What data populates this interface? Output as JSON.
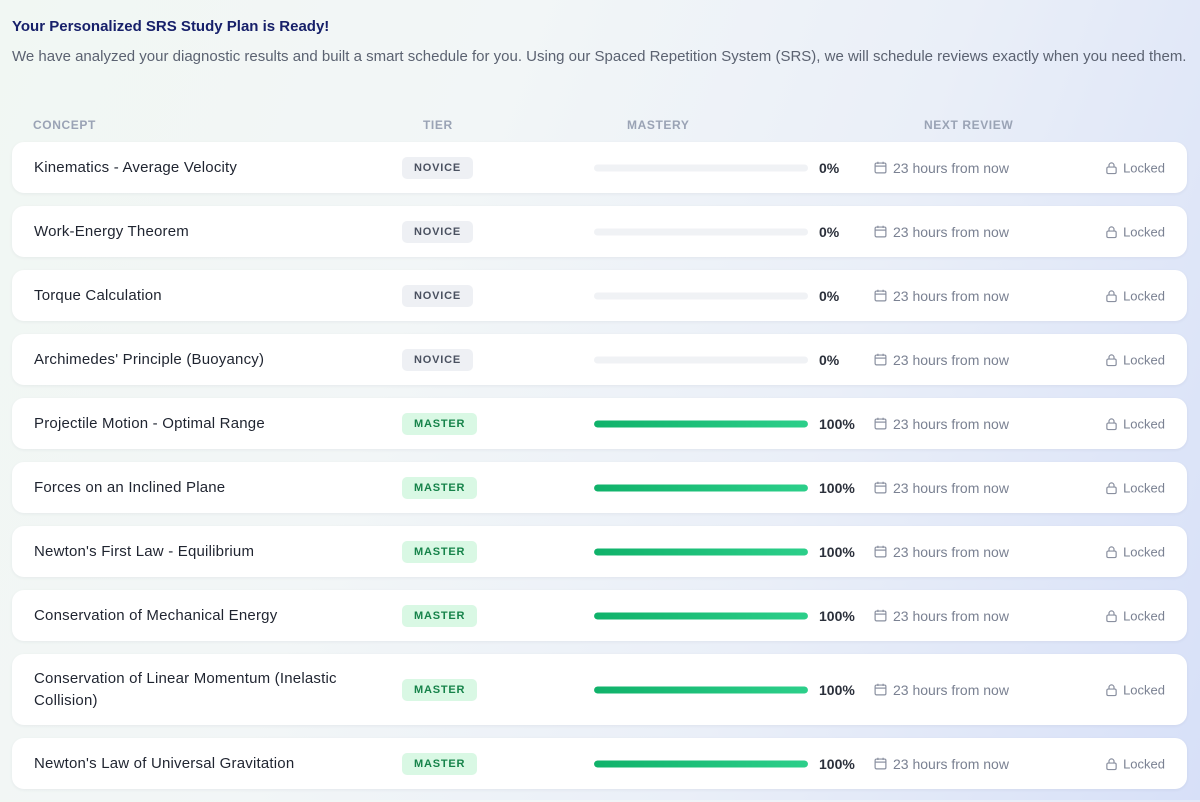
{
  "header": {
    "title": "Your Personalized SRS Study Plan is Ready!",
    "description": "We have analyzed your diagnostic results and built a smart schedule for you. Using our Spaced Repetition System (SRS), we will schedule reviews exactly when you need them."
  },
  "columns": {
    "concept": "CONCEPT",
    "tier": "TIER",
    "mastery": "MASTERY",
    "next_review": "NEXT REVIEW"
  },
  "icons": {
    "review": "calendar-icon",
    "status": "lock-icon"
  },
  "colors": {
    "title": "#17206a",
    "master_badge_bg": "#d9f8e4",
    "master_badge_text": "#16834a",
    "novice_badge_bg": "#eef0f4",
    "progress_fill": "#10b26a"
  },
  "rows": [
    {
      "concept": "Kinematics - Average Velocity",
      "tier": "NOVICE",
      "mastery": 0,
      "mastery_label": "0%",
      "next_review": "23 hours from now",
      "status": "Locked"
    },
    {
      "concept": "Work-Energy Theorem",
      "tier": "NOVICE",
      "mastery": 0,
      "mastery_label": "0%",
      "next_review": "23 hours from now",
      "status": "Locked"
    },
    {
      "concept": "Torque Calculation",
      "tier": "NOVICE",
      "mastery": 0,
      "mastery_label": "0%",
      "next_review": "23 hours from now",
      "status": "Locked"
    },
    {
      "concept": "Archimedes' Principle (Buoyancy)",
      "tier": "NOVICE",
      "mastery": 0,
      "mastery_label": "0%",
      "next_review": "23 hours from now",
      "status": "Locked"
    },
    {
      "concept": "Projectile Motion - Optimal Range",
      "tier": "MASTER",
      "mastery": 100,
      "mastery_label": "100%",
      "next_review": "23 hours from now",
      "status": "Locked"
    },
    {
      "concept": "Forces on an Inclined Plane",
      "tier": "MASTER",
      "mastery": 100,
      "mastery_label": "100%",
      "next_review": "23 hours from now",
      "status": "Locked"
    },
    {
      "concept": "Newton's First Law - Equilibrium",
      "tier": "MASTER",
      "mastery": 100,
      "mastery_label": "100%",
      "next_review": "23 hours from now",
      "status": "Locked"
    },
    {
      "concept": "Conservation of Mechanical Energy",
      "tier": "MASTER",
      "mastery": 100,
      "mastery_label": "100%",
      "next_review": "23 hours from now",
      "status": "Locked"
    },
    {
      "concept": "Conservation of Linear Momentum (Inelastic Collision)",
      "tier": "MASTER",
      "mastery": 100,
      "mastery_label": "100%",
      "next_review": "23 hours from now",
      "status": "Locked"
    },
    {
      "concept": "Newton's Law of Universal Gravitation",
      "tier": "MASTER",
      "mastery": 100,
      "mastery_label": "100%",
      "next_review": "23 hours from now",
      "status": "Locked"
    }
  ]
}
